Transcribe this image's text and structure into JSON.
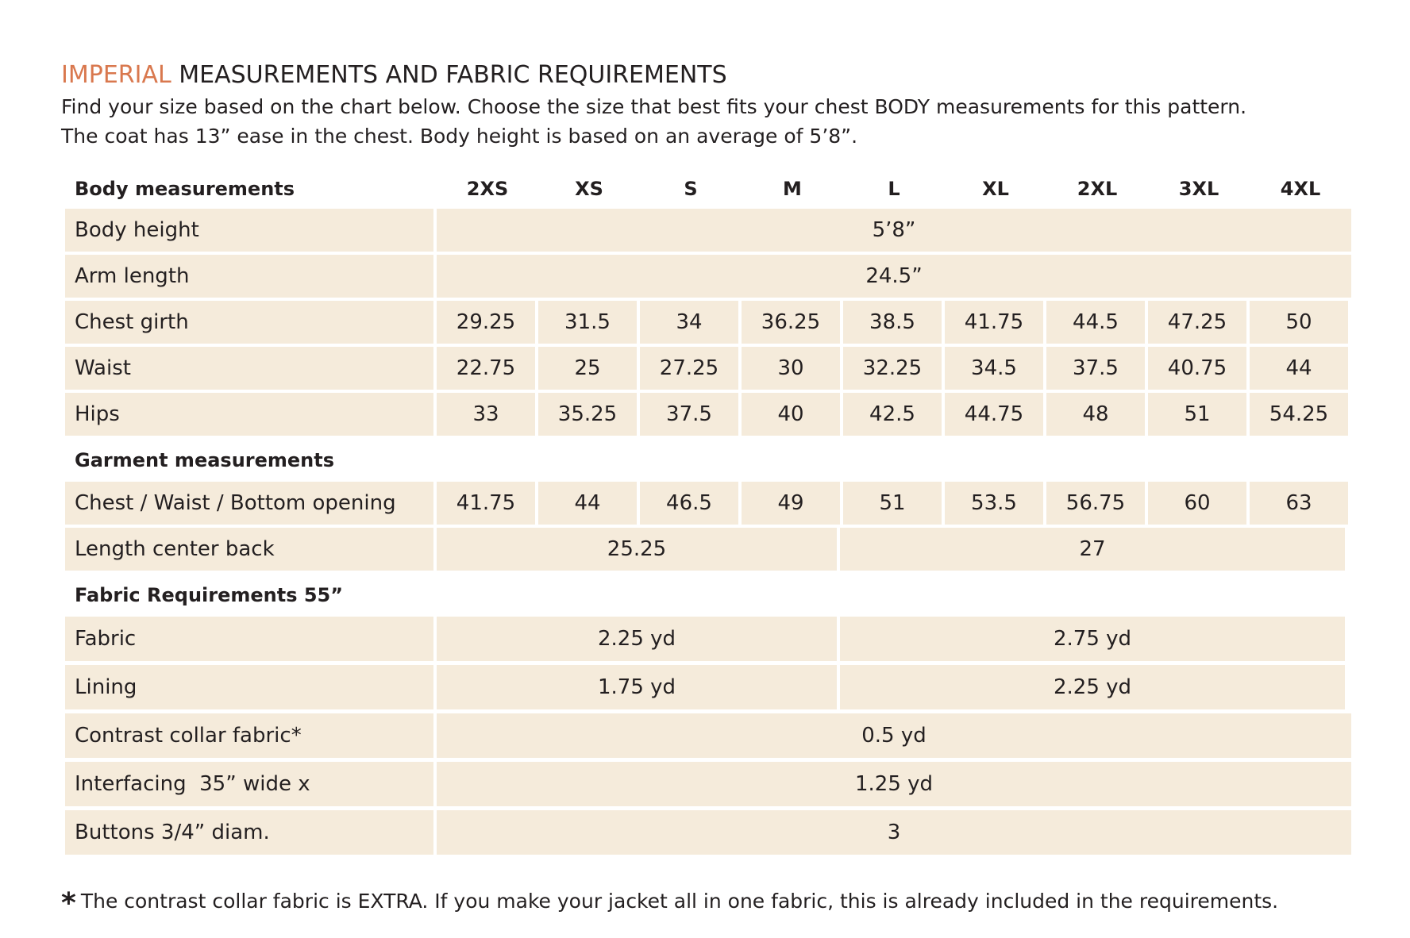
{
  "title": {
    "accent": "IMPERIAL",
    "rest": " MEASUREMENTS AND FABRIC REQUIREMENTS"
  },
  "intro": {
    "line1": "Find your size based on the chart below. Choose the size that best fits your chest BODY measurements for this pattern.",
    "line2": "The coat has 13” ease in the chest. Body height is based on an average of 5’8”."
  },
  "colors": {
    "accent": "#d9784e",
    "cell_bg": "#f5ebdb",
    "text": "#231f20"
  },
  "table": {
    "header_label": "Body measurements",
    "sizes": [
      "2XS",
      "XS",
      "S",
      "M",
      "L",
      "XL",
      "2XL",
      "3XL",
      "4XL"
    ],
    "body": {
      "body_height": {
        "label": "Body height",
        "value": "5’8”"
      },
      "arm_length": {
        "label": "Arm length",
        "value": "24.5”"
      },
      "chest_girth": {
        "label": "Chest girth",
        "values": [
          "29.25",
          "31.5",
          "34",
          "36.25",
          "38.5",
          "41.75",
          "44.5",
          "47.25",
          "50"
        ]
      },
      "waist": {
        "label": "Waist",
        "values": [
          "22.75",
          "25",
          "27.25",
          "30",
          "32.25",
          "34.5",
          "37.5",
          "40.75",
          "44"
        ]
      },
      "hips": {
        "label": "Hips",
        "values": [
          "33",
          "35.25",
          "37.5",
          "40",
          "42.5",
          "44.75",
          "48",
          "51",
          "54.25"
        ]
      }
    },
    "garment": {
      "section_label": "Garment measurements",
      "chest_waist_bottom": {
        "label": "Chest / Waist / Bottom opening",
        "values": [
          "41.75",
          "44",
          "46.5",
          "49",
          "51",
          "53.5",
          "56.75",
          "60",
          "63"
        ]
      },
      "length_center_back": {
        "label": "Length center back",
        "small": "25.25",
        "large": "27"
      }
    },
    "fabric": {
      "section_label": "Fabric Requirements 55”",
      "fabric": {
        "label": "Fabric",
        "small": "2.25 yd",
        "large": "2.75 yd"
      },
      "lining": {
        "label": "Lining",
        "small": "1.75 yd",
        "large": "2.25 yd"
      },
      "contrast_collar": {
        "label": "Contrast collar fabric*",
        "value": "0.5 yd"
      },
      "interfacing": {
        "label": "Interfacing  35” wide x",
        "value": "1.25 yd"
      },
      "buttons": {
        "label": "Buttons 3/4” diam.",
        "value": "3"
      }
    }
  },
  "footnote": {
    "star": "*",
    "text": "The contrast collar fabric is EXTRA. If you make your jacket all in one fabric, this is already included in the requirements."
  }
}
